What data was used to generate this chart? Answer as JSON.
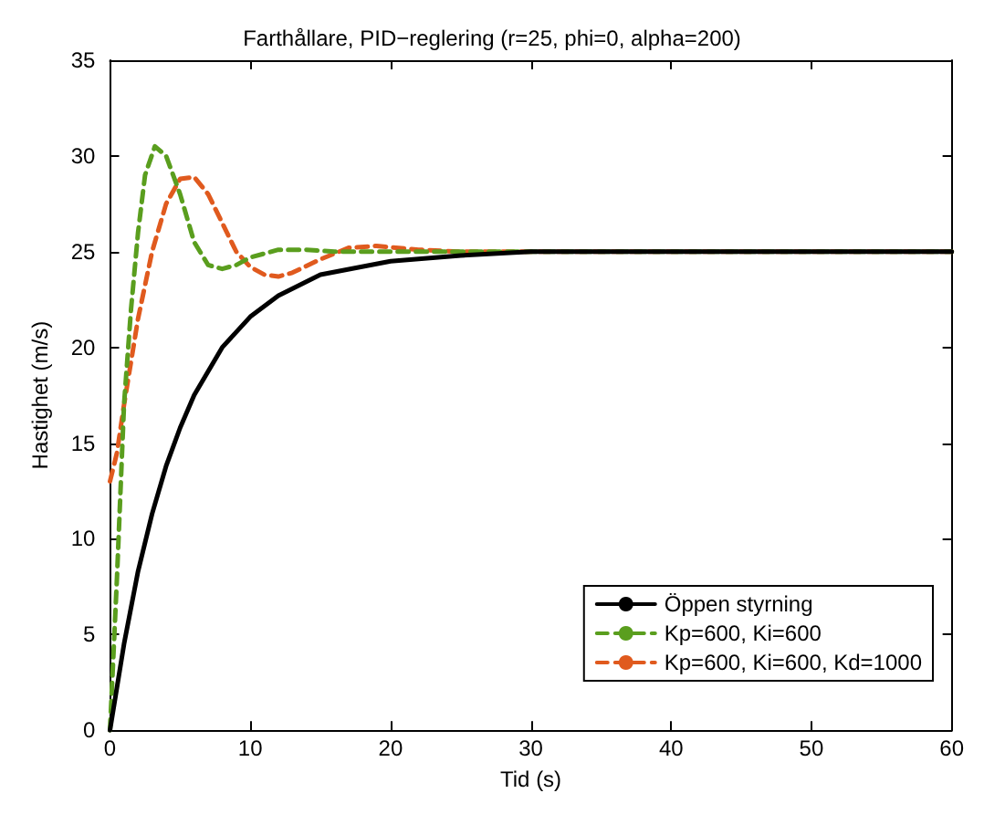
{
  "chart_data": {
    "type": "line",
    "title": "Farthållare, PID−reglering (r=25, phi=0, alpha=200)",
    "xlabel": "Tid (s)",
    "ylabel": "Hastighet (m/s)",
    "xlim": [
      0,
      60
    ],
    "xticks": [
      0,
      10,
      20,
      30,
      40,
      50,
      60
    ],
    "ylim": [
      0,
      35
    ],
    "yticks": [
      0,
      5,
      10,
      15,
      20,
      25,
      30,
      35
    ],
    "grid": false,
    "legend": "bottom right",
    "marker": "none",
    "series": [
      {
        "name": "Öppen styrning",
        "color": "#000000",
        "line_style": "solid",
        "x": [
          0,
          1,
          2,
          3,
          4,
          5,
          6,
          8,
          10,
          12,
          15,
          20,
          25,
          30,
          40,
          60
        ],
        "values": [
          0,
          4.5,
          8.3,
          11.3,
          13.8,
          15.8,
          17.5,
          20,
          21.6,
          22.7,
          23.8,
          24.5,
          24.8,
          25,
          25,
          25
        ]
      },
      {
        "name": "Kp=600, Ki=600",
        "color": "#5a9e1e",
        "line_style": "dashed",
        "x": [
          0,
          0.5,
          1,
          1.5,
          2,
          2.5,
          3.2,
          4,
          5,
          6,
          7,
          8,
          9,
          10,
          12,
          14,
          16,
          20,
          60
        ],
        "values": [
          0,
          8,
          17,
          22,
          26,
          29,
          30.5,
          30,
          28,
          25.5,
          24.3,
          24.1,
          24.3,
          24.7,
          25.1,
          25.1,
          25,
          25,
          25
        ]
      },
      {
        "name": "Kp=600, Ki=600, Kd=1000",
        "color": "#e05a1e",
        "line_style": "dashed",
        "x": [
          0,
          0.5,
          1,
          2,
          3,
          4,
          5,
          6,
          7,
          8,
          9,
          10,
          11,
          12,
          13,
          15,
          17,
          19,
          22,
          25,
          60
        ],
        "values": [
          13,
          14.5,
          17,
          21.5,
          25,
          27.5,
          28.8,
          28.9,
          28,
          26.5,
          25,
          24.2,
          23.8,
          23.7,
          23.9,
          24.6,
          25.2,
          25.3,
          25.1,
          25,
          25
        ]
      }
    ]
  }
}
